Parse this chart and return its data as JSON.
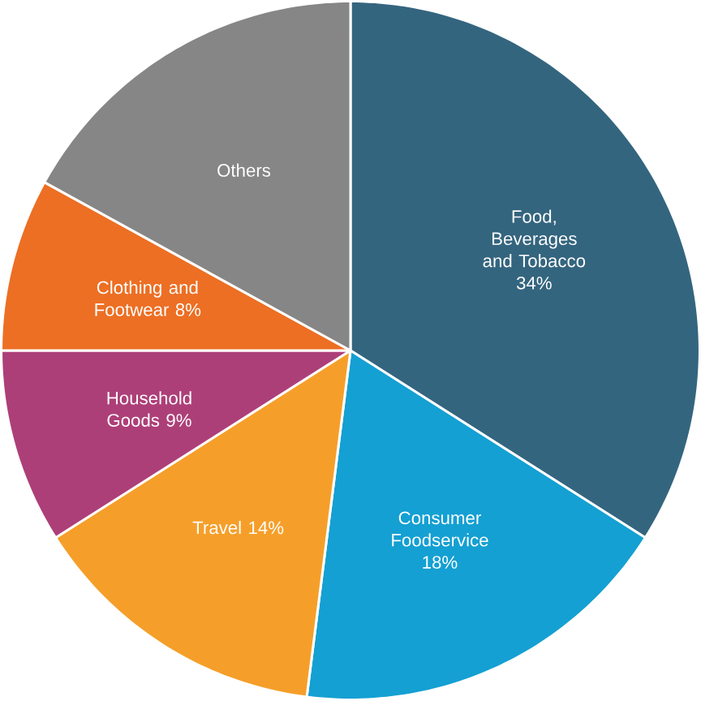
{
  "chart_data": {
    "type": "pie",
    "categories": [
      "Food, Beverages and Tobacco",
      "Consumer Foodservice",
      "Travel",
      "Household Goods",
      "Clothing and Footwear",
      "Others"
    ],
    "values": [
      34,
      18,
      14,
      9,
      8,
      17
    ],
    "value_labels": [
      "34%",
      "18%",
      "14%",
      "9%",
      "8%",
      null
    ],
    "colors": [
      "#34657f",
      "#14a0d2",
      "#f59f2a",
      "#ad3f78",
      "#ec6f24",
      "#868686"
    ]
  }
}
